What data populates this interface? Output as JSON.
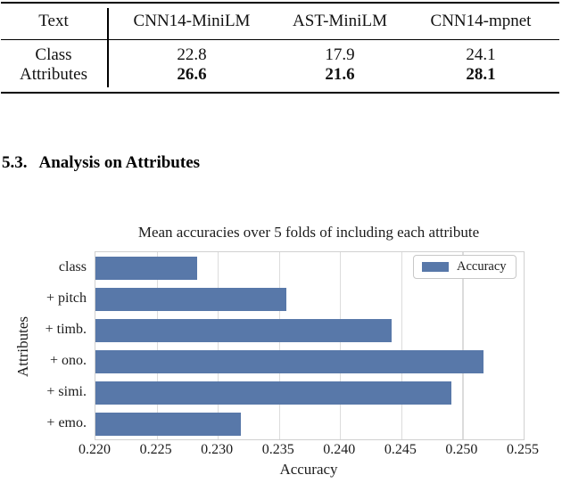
{
  "table": {
    "columns": [
      "Text",
      "CNN14-MiniLM",
      "AST-MiniLM",
      "CNN14-mpnet"
    ],
    "rows": [
      {
        "label": "Class",
        "values": [
          "22.8",
          "17.9",
          "24.1"
        ]
      },
      {
        "label": "Attributes",
        "values": [
          "26.6",
          "21.6",
          "28.1"
        ]
      }
    ]
  },
  "section": {
    "number": "5.3.",
    "title": "Analysis on Attributes"
  },
  "chart_data": {
    "type": "bar",
    "orientation": "horizontal",
    "title": "Mean accuracies over 5 folds of including each attribute",
    "xlabel": "Accuracy",
    "ylabel": "Attributes",
    "categories": [
      "class",
      "+ pitch",
      "+ timb.",
      "+ ono.",
      "+ simi.",
      "+ emo."
    ],
    "values": [
      0.2283,
      0.2356,
      0.2442,
      0.2517,
      0.2491,
      0.2319
    ],
    "xlim": [
      0.22,
      0.255
    ],
    "xticks": [
      {
        "value": 0.22,
        "label": "0.220"
      },
      {
        "value": 0.225,
        "label": "0.225"
      },
      {
        "value": 0.23,
        "label": "0.230"
      },
      {
        "value": 0.235,
        "label": "0.235"
      },
      {
        "value": 0.24,
        "label": "0.240"
      },
      {
        "value": 0.245,
        "label": "0.245"
      },
      {
        "value": 0.25,
        "label": "0.250"
      },
      {
        "value": 0.255,
        "label": "0.255"
      }
    ],
    "grid": true,
    "legend": {
      "label": "Accuracy",
      "position": "upper right"
    },
    "bar_color": "#5878a9",
    "grid_color": "#dcdcdc"
  }
}
